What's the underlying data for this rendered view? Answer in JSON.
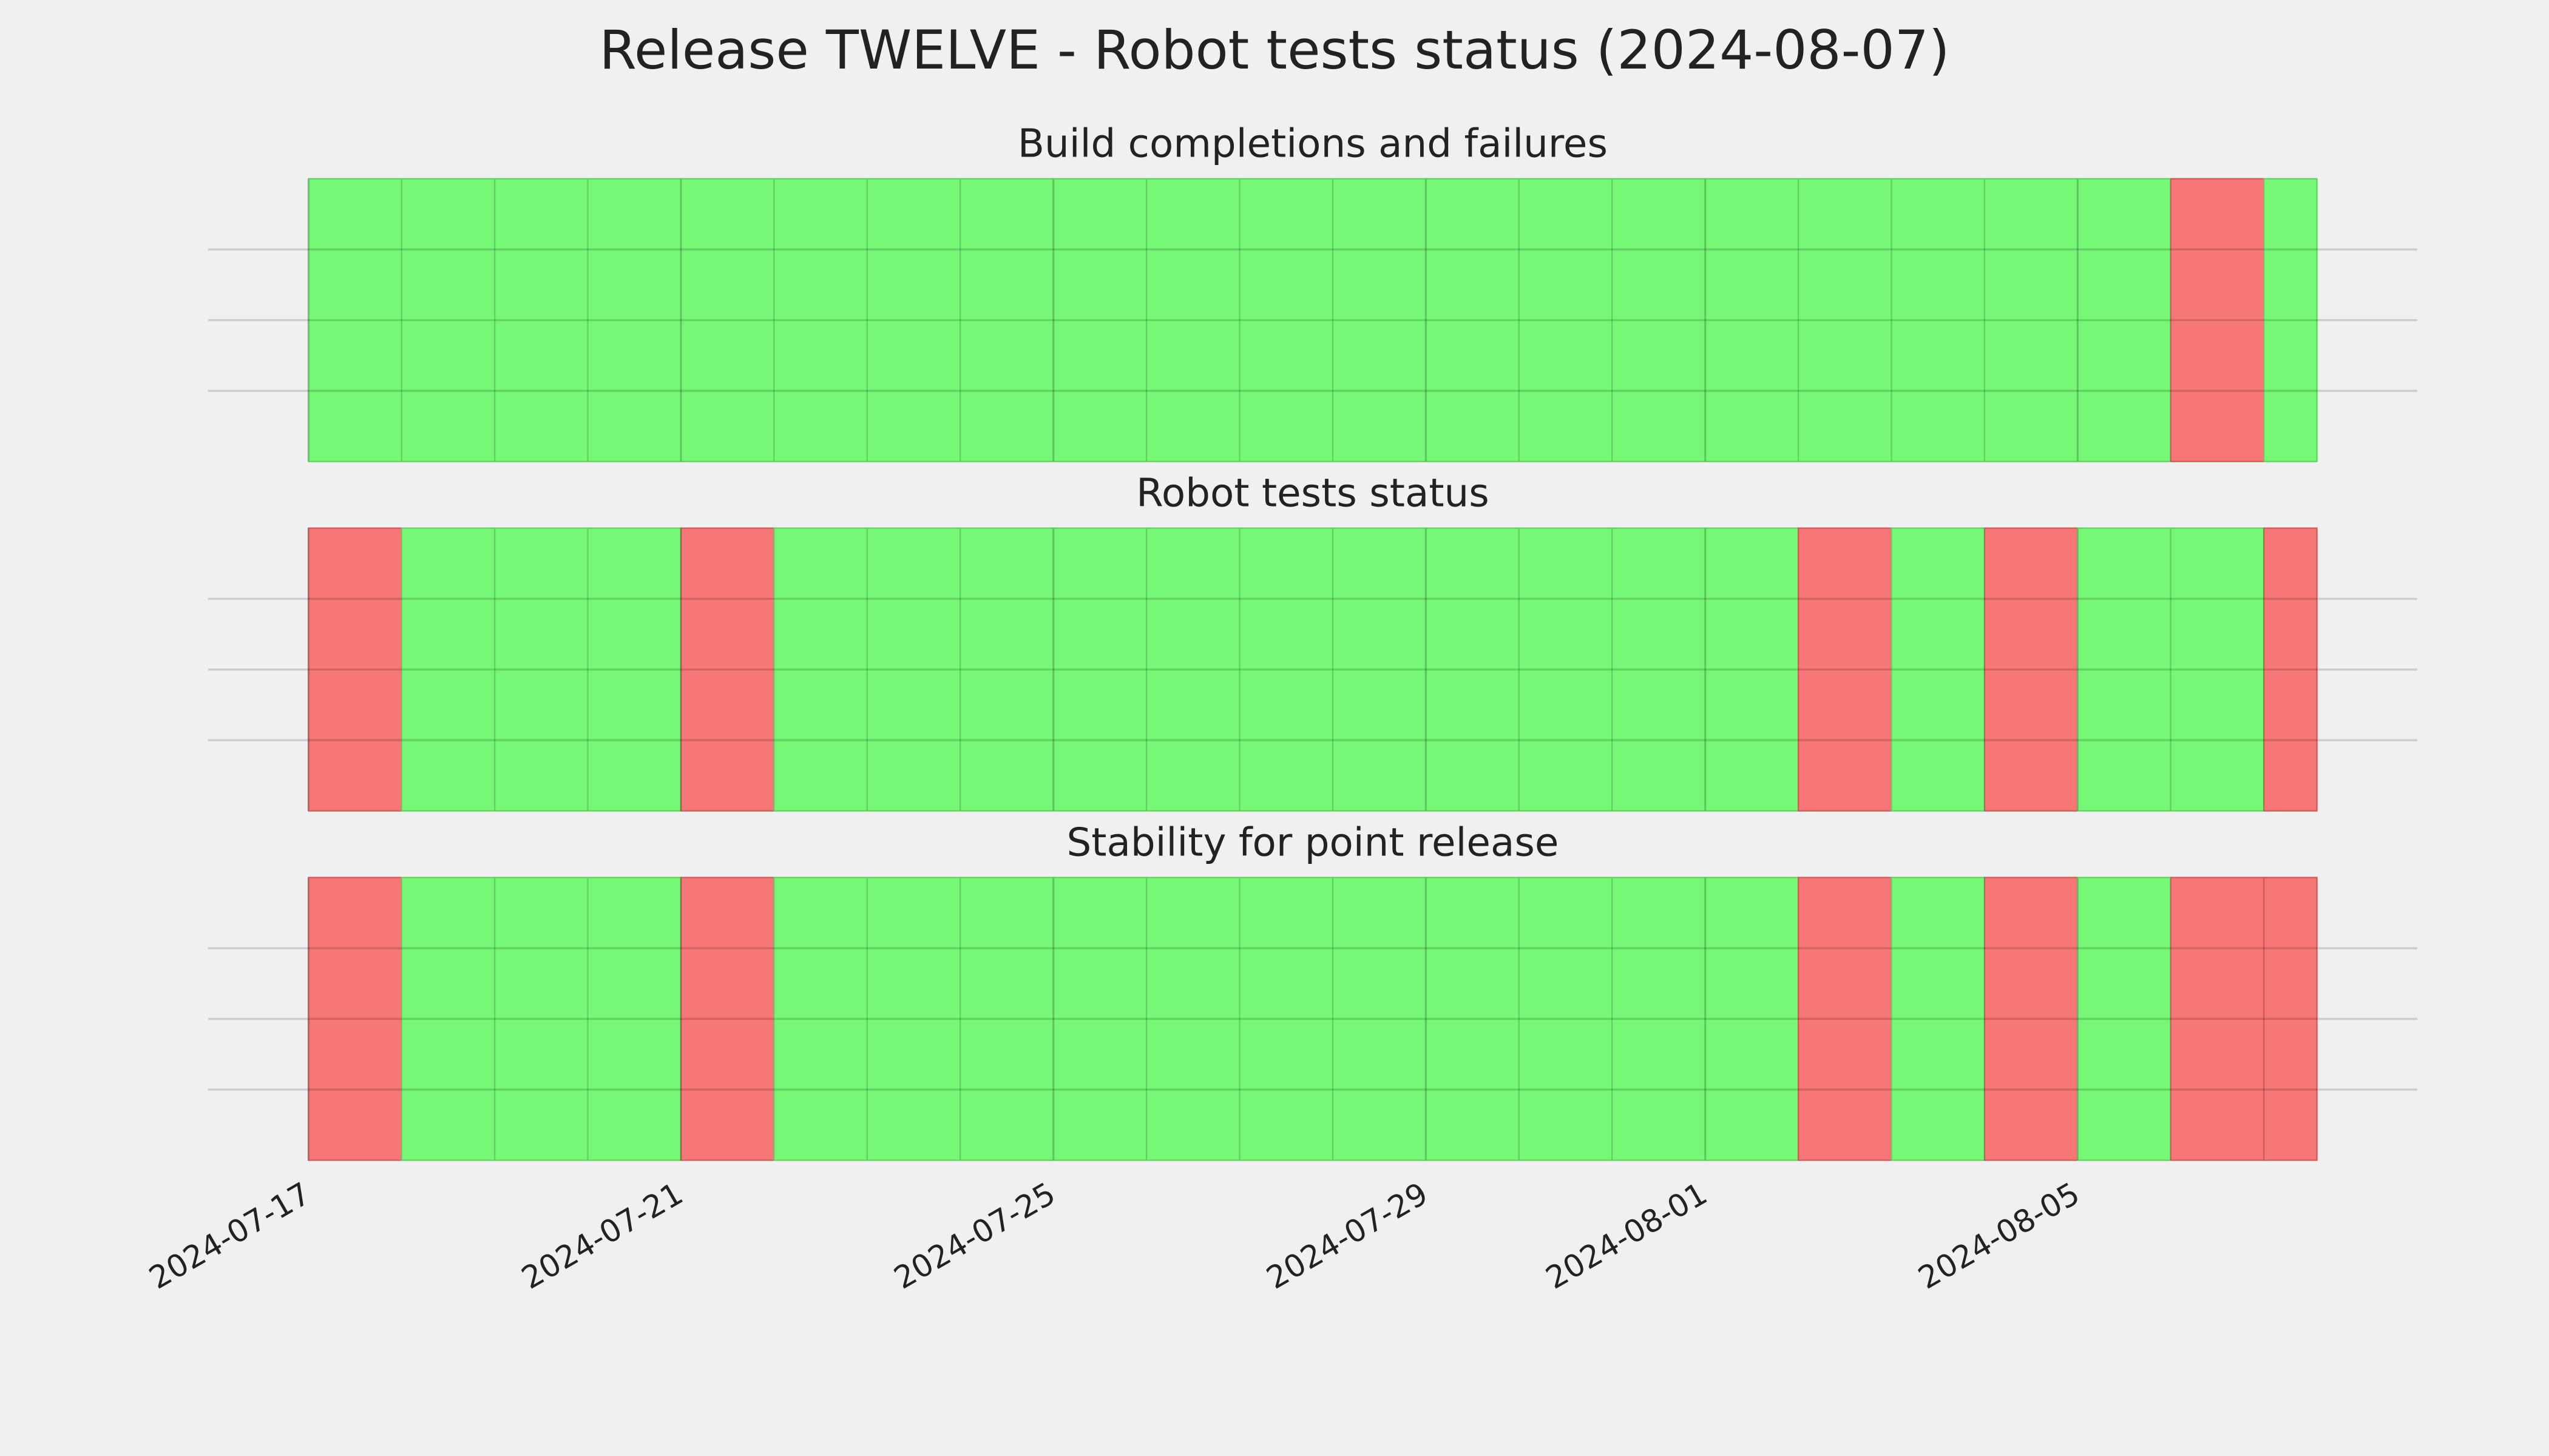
{
  "chart_data": {
    "type": "timeline",
    "title": "Release TWELVE - Robot tests status (2024-08-07)",
    "bins": [
      "2024-07-17",
      "2024-07-18",
      "2024-07-19",
      "2024-07-20",
      "2024-07-21",
      "2024-07-22",
      "2024-07-23",
      "2024-07-24",
      "2024-07-25",
      "2024-07-26",
      "2024-07-27",
      "2024-07-28",
      "2024-07-29",
      "2024-07-30",
      "2024-07-31",
      "2024-08-01",
      "2024-08-02",
      "2024-08-03",
      "2024-08-04",
      "2024-08-05",
      "2024-08-06",
      "2024-08-07",
      "2024-08-07T13:40"
    ],
    "xlim": [
      "2024-07-15T22:07",
      "2024-08-08T15:33"
    ],
    "xticks": [
      "2024-07-17",
      "2024-07-21",
      "2024-07-25",
      "2024-07-29",
      "2024-08-01",
      "2024-08-05"
    ],
    "ylim": [
      0,
      1
    ],
    "yticks": [
      0.25,
      0.5,
      0.75
    ],
    "grid": true,
    "pass_color": "#76f776",
    "fail_color": "#f77676",
    "panels": [
      {
        "title": "Build completions and failures",
        "values": [
          1,
          1,
          1,
          1,
          1,
          1,
          1,
          1,
          1,
          1,
          1,
          1,
          1,
          1,
          1,
          1,
          1,
          1,
          1,
          1,
          0,
          1
        ]
      },
      {
        "title": "Robot tests status",
        "values": [
          0,
          1,
          1,
          1,
          0,
          1,
          1,
          1,
          1,
          1,
          1,
          1,
          1,
          1,
          1,
          1,
          0,
          1,
          0,
          1,
          1,
          0
        ]
      },
      {
        "title": "Stability for point release",
        "values": [
          0,
          1,
          1,
          1,
          0,
          1,
          1,
          1,
          1,
          1,
          1,
          1,
          1,
          1,
          1,
          1,
          0,
          1,
          0,
          1,
          0,
          0
        ]
      }
    ]
  }
}
